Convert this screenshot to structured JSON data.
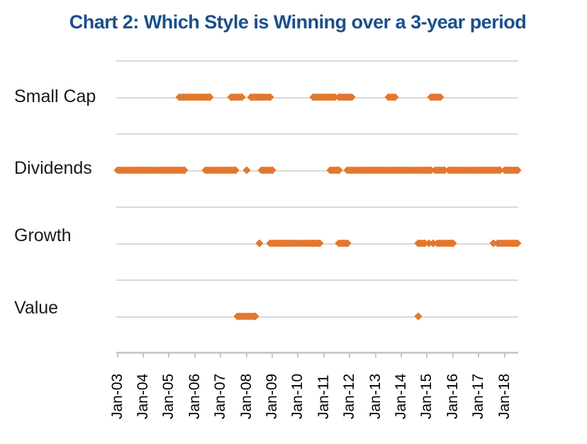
{
  "title": "Chart 2: Which Style is Winning over a 3-year period",
  "colors": {
    "title": "#1B4F8A",
    "marker": "#E4772E",
    "gridline": "#D9D9D9",
    "axis": "#C6C6C6",
    "label": "#1A1A1A"
  },
  "chart_data": {
    "type": "scatter",
    "title": "Chart 2: Which Style is Winning over a 3-year period",
    "grid": true,
    "legend": false,
    "x_axis": {
      "tick_labels": [
        "Jan-03",
        "Jan-04",
        "Jan-05",
        "Jan-06",
        "Jan-07",
        "Jan-08",
        "Jan-09",
        "Jan-10",
        "Jan-11",
        "Jan-12",
        "Jan-13",
        "Jan-14",
        "Jan-15",
        "Jan-16",
        "Jan-17",
        "Jan-18"
      ],
      "range_start": "2003-01",
      "range_end": "2018-08"
    },
    "y_categories": [
      "Small Cap",
      "Dividends",
      "Growth",
      "Value"
    ],
    "series": [
      {
        "name": "Small Cap",
        "segments": [
          [
            "2005-06",
            "2006-08"
          ],
          [
            "2007-06",
            "2007-11"
          ],
          [
            "2008-03",
            "2008-07"
          ],
          [
            "2008-08",
            "2008-12"
          ],
          [
            "2010-08",
            "2011-06"
          ],
          [
            "2011-08",
            "2012-02"
          ],
          [
            "2013-07",
            "2013-10"
          ],
          [
            "2015-03",
            "2015-07"
          ]
        ]
      },
      {
        "name": "Dividends",
        "segments": [
          [
            "2003-01",
            "2005-08"
          ],
          [
            "2006-06",
            "2007-08"
          ],
          [
            "2008-01",
            "2008-01"
          ],
          [
            "2008-08",
            "2009-01"
          ],
          [
            "2011-04",
            "2011-08"
          ],
          [
            "2011-12",
            "2013-08"
          ],
          [
            "2013-09",
            "2015-03"
          ],
          [
            "2015-05",
            "2015-09"
          ],
          [
            "2015-11",
            "2017-11"
          ],
          [
            "2018-01",
            "2018-04"
          ],
          [
            "2018-05",
            "2018-07"
          ]
        ]
      },
      {
        "name": "Growth",
        "segments": [
          [
            "2008-07",
            "2008-07"
          ],
          [
            "2008-12",
            "2010-11"
          ],
          [
            "2011-08",
            "2011-12"
          ],
          [
            "2014-09",
            "2014-12"
          ],
          [
            "2015-02",
            "2015-02"
          ],
          [
            "2015-04",
            "2015-04"
          ],
          [
            "2015-06",
            "2016-01"
          ],
          [
            "2017-08",
            "2017-08"
          ],
          [
            "2017-10",
            "2018-07"
          ]
        ]
      },
      {
        "name": "Value",
        "segments": [
          [
            "2007-09",
            "2007-09"
          ],
          [
            "2007-10",
            "2008-05"
          ],
          [
            "2014-09",
            "2014-09"
          ]
        ]
      }
    ]
  }
}
